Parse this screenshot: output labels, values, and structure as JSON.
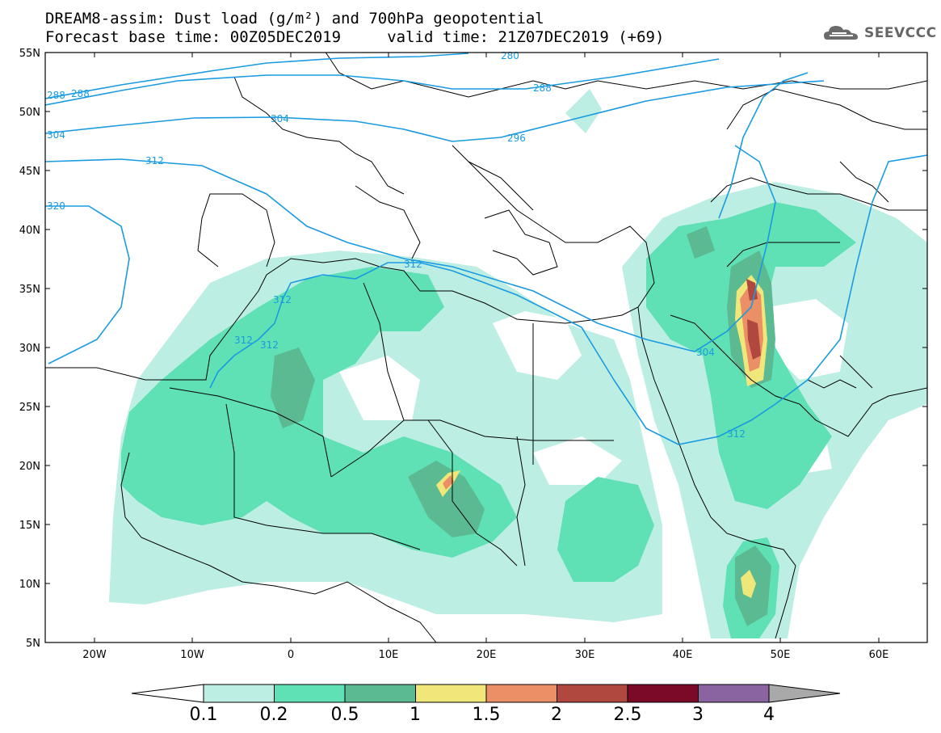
{
  "title_line1": "DREAM8-assim: Dust load (g/m²) and 700hPa geopotential",
  "title_line2": "Forecast base time: 00Z05DEC2019     valid time: 21Z07DEC2019 (+69)",
  "logo": {
    "text": "SEEVCCC",
    "icon": "cloud-logo-icon",
    "color": "#666666"
  },
  "map": {
    "lon_range": [
      -25,
      65
    ],
    "lat_range": [
      5,
      55
    ],
    "lat_ticks": [
      "55N",
      "50N",
      "45N",
      "40N",
      "35N",
      "30N",
      "25N",
      "20N",
      "15N",
      "10N",
      "5N"
    ],
    "lon_ticks": [
      "20W",
      "10W",
      "0",
      "10E",
      "20E",
      "30E",
      "40E",
      "50E",
      "60E"
    ],
    "contour_color": "#1a9be0",
    "contour_labels": [
      "288",
      "288",
      "280",
      "288",
      "304",
      "296",
      "312",
      "304",
      "320",
      "312",
      "312",
      "312",
      "312",
      "304",
      "312"
    ]
  },
  "colorbar": {
    "labels": [
      "0.1",
      "0.2",
      "0.5",
      "1",
      "1.5",
      "2",
      "2.5",
      "3",
      "4"
    ],
    "colors": [
      "#bdeee4",
      "#5fe0b5",
      "#5cba92",
      "#f0e77a",
      "#ea8f66",
      "#b0483f",
      "#7a0a26",
      "#8a64a0"
    ],
    "under_color": "#ffffff",
    "over_color": "#a9a9a9"
  }
}
